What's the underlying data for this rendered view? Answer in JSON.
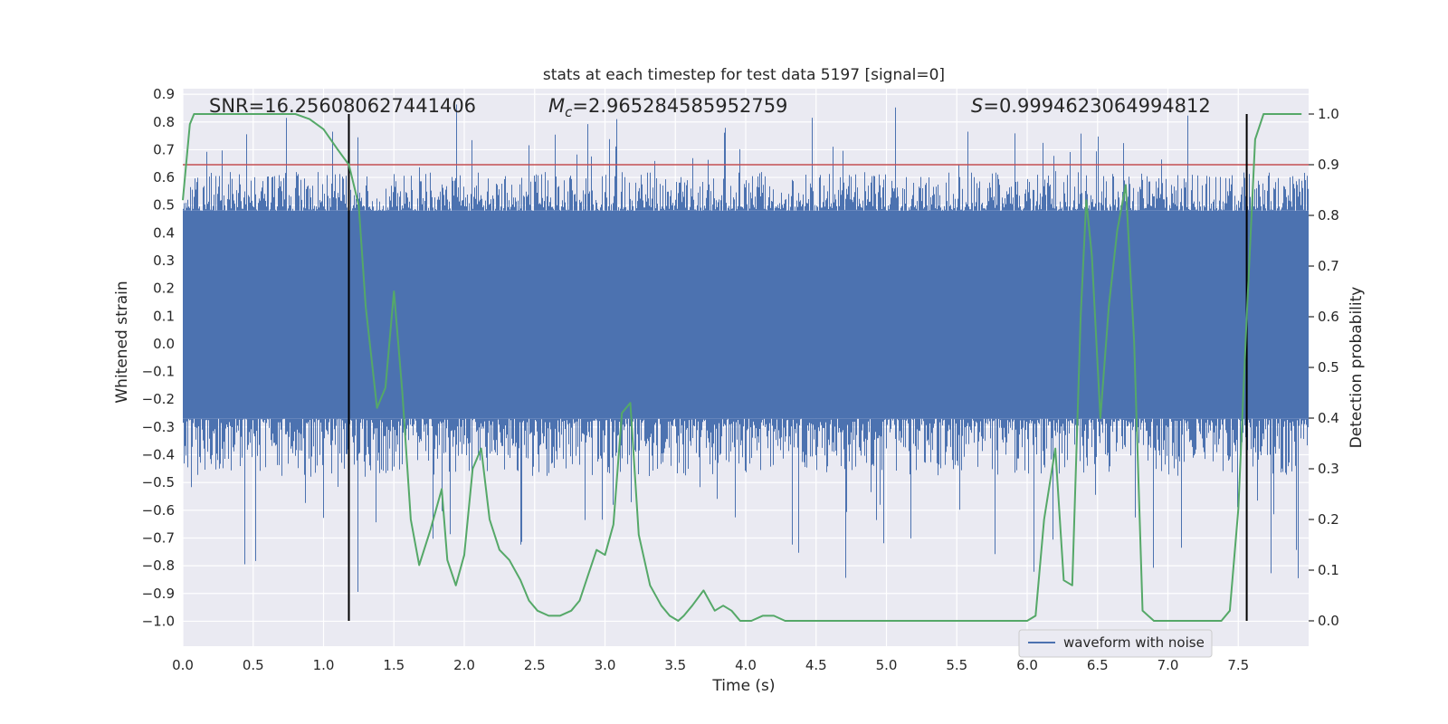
{
  "chart_data": {
    "type": "line",
    "title": "stats at each timestep for test data 5197 [signal=0]",
    "xlabel": "Time (s)",
    "ylabel": "Whitened strain",
    "y2label": "Detection probability",
    "xlim": [
      0.0,
      8.0
    ],
    "ylim": [
      -1.09,
      0.92
    ],
    "y2lim": [
      -0.05,
      1.05
    ],
    "xticks": [
      "0.0",
      "0.5",
      "1.0",
      "1.5",
      "2.0",
      "2.5",
      "3.0",
      "3.5",
      "4.0",
      "4.5",
      "5.0",
      "5.5",
      "6.0",
      "6.5",
      "7.0",
      "7.5"
    ],
    "yticks": [
      "0.9",
      "0.8",
      "0.7",
      "0.6",
      "0.5",
      "0.4",
      "0.3",
      "0.2",
      "0.1",
      "0.0",
      "−0.1",
      "−0.2",
      "−0.3",
      "−0.4",
      "−0.5",
      "−0.6",
      "−0.7",
      "−0.8",
      "−0.9",
      "−1.0"
    ],
    "y2ticks": [
      "1.0",
      "0.9",
      "0.8",
      "0.7",
      "0.6",
      "0.5",
      "0.4",
      "0.3",
      "0.2",
      "0.1",
      "0.0"
    ],
    "grid": true,
    "legend": {
      "entries": [
        "waveform with noise"
      ],
      "placement": "lower-right"
    },
    "annotations": {
      "snr": "SNR=16.256080627441406",
      "mc_symbol": "M",
      "mc_sub": "c",
      "mc_value": "=2.965284585952759",
      "s_symbol": "S",
      "s_value": "=0.9994623064994812"
    },
    "vlines": [
      1.18,
      7.56
    ],
    "threshold_probability": 0.9,
    "series": [
      {
        "name": "waveform with noise",
        "axis": "left",
        "color": "#4c72b0",
        "style": "noise-band",
        "core_band": [
          -0.27,
          0.48
        ],
        "typical_peak_band": [
          -0.48,
          0.62
        ],
        "max": 0.9,
        "min": -0.99
      },
      {
        "axis": "right",
        "color": "#55a868",
        "x": [
          0.0,
          0.05,
          0.08,
          0.1,
          0.2,
          0.4,
          0.6,
          0.8,
          0.9,
          1.0,
          1.1,
          1.18,
          1.25,
          1.3,
          1.38,
          1.44,
          1.5,
          1.56,
          1.62,
          1.68,
          1.76,
          1.84,
          1.88,
          1.94,
          2.0,
          2.06,
          2.12,
          2.18,
          2.25,
          2.32,
          2.4,
          2.46,
          2.52,
          2.6,
          2.68,
          2.76,
          2.82,
          2.88,
          2.94,
          3.0,
          3.06,
          3.12,
          3.18,
          3.24,
          3.32,
          3.4,
          3.46,
          3.52,
          3.56,
          3.62,
          3.7,
          3.78,
          3.84,
          3.9,
          3.96,
          4.04,
          4.12,
          4.2,
          4.28,
          4.5,
          5.0,
          5.5,
          6.0,
          6.06,
          6.12,
          6.2,
          6.26,
          6.32,
          6.38,
          6.42,
          6.46,
          6.52,
          6.58,
          6.64,
          6.7,
          6.76,
          6.82,
          6.9,
          7.0,
          7.1,
          7.2,
          7.32,
          7.38,
          7.44,
          7.5,
          7.56,
          7.62,
          7.68,
          7.74,
          7.8,
          7.88,
          7.95
        ],
        "y": [
          0.83,
          0.98,
          1.0,
          1.0,
          1.0,
          1.0,
          1.0,
          1.0,
          0.99,
          0.97,
          0.93,
          0.9,
          0.82,
          0.62,
          0.42,
          0.46,
          0.65,
          0.45,
          0.2,
          0.11,
          0.18,
          0.26,
          0.12,
          0.07,
          0.13,
          0.3,
          0.34,
          0.2,
          0.14,
          0.12,
          0.08,
          0.04,
          0.02,
          0.01,
          0.01,
          0.02,
          0.04,
          0.09,
          0.14,
          0.13,
          0.19,
          0.41,
          0.43,
          0.17,
          0.07,
          0.03,
          0.01,
          0.0,
          0.01,
          0.03,
          0.06,
          0.02,
          0.03,
          0.02,
          0.0,
          0.0,
          0.01,
          0.01,
          0.0,
          0.0,
          0.0,
          0.0,
          0.0,
          0.01,
          0.2,
          0.34,
          0.08,
          0.07,
          0.6,
          0.83,
          0.72,
          0.4,
          0.62,
          0.77,
          0.86,
          0.55,
          0.02,
          0.0,
          0.0,
          0.0,
          0.0,
          0.0,
          0.0,
          0.02,
          0.22,
          0.6,
          0.95,
          1.0,
          1.0,
          1.0,
          1.0,
          1.0
        ]
      }
    ],
    "colors": {
      "plot_bg": "#eaeaf2",
      "grid": "#ffffff",
      "waveform": "#4c72b0",
      "probability": "#55a868",
      "threshold": "#c44e52",
      "vline": "#000000",
      "text": "#262626"
    }
  }
}
